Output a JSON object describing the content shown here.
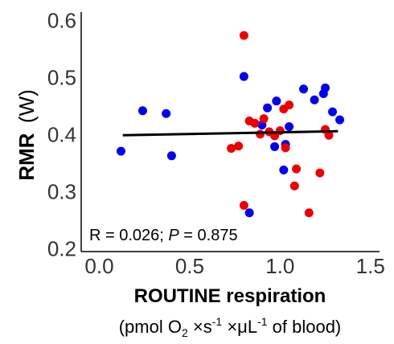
{
  "chart_data": {
    "type": "scatter",
    "ylabel": "RMR",
    "ylabel_unit": "(W)",
    "xlabel": "ROUTINE respiration",
    "xlabel_unit": {
      "open": "(pmol O",
      "o2_sub": "2",
      "times1": " ×s",
      "sup1": "-1",
      "times2": " ×μL",
      "sup2": "-1",
      "tail": " of blood)"
    },
    "xlim": [
      -0.1,
      1.55
    ],
    "ylim": [
      0.195,
      0.615
    ],
    "x_ticks": [
      "0.0",
      "0.5",
      "1.0",
      "1.5"
    ],
    "x_tick_values": [
      0.0,
      0.5,
      1.0,
      1.5
    ],
    "y_ticks": [
      "0.2",
      "0.3",
      "0.4",
      "0.5",
      "0.6"
    ],
    "y_tick_values": [
      0.2,
      0.3,
      0.4,
      0.5,
      0.6
    ],
    "annotation": {
      "prefix": "R = 0.026; ",
      "p_label": "P",
      "suffix": " = 0.875"
    },
    "trend_line": {
      "x": [
        0.13,
        1.32
      ],
      "y": [
        0.399,
        0.406
      ],
      "color": "#000000"
    },
    "series": [
      {
        "color": "#0000ee",
        "points": [
          [
            0.12,
            0.371
          ],
          [
            0.24,
            0.442
          ],
          [
            0.37,
            0.437
          ],
          [
            0.4,
            0.363
          ],
          [
            0.8,
            0.502
          ],
          [
            0.83,
            0.263
          ],
          [
            0.9,
            0.417
          ],
          [
            0.93,
            0.447
          ],
          [
            0.97,
            0.379
          ],
          [
            0.98,
            0.459
          ],
          [
            1.02,
            0.338
          ],
          [
            1.05,
            0.414
          ],
          [
            1.13,
            0.48
          ],
          [
            1.19,
            0.461
          ],
          [
            1.24,
            0.472
          ],
          [
            1.25,
            0.482
          ],
          [
            1.29,
            0.44
          ],
          [
            1.33,
            0.426
          ],
          [
            1.03,
            0.383
          ]
        ]
      },
      {
        "color": "#ee0000",
        "points": [
          [
            0.73,
            0.376
          ],
          [
            0.77,
            0.38
          ],
          [
            0.8,
            0.574
          ],
          [
            0.8,
            0.276
          ],
          [
            0.83,
            0.424
          ],
          [
            0.86,
            0.42
          ],
          [
            0.89,
            0.401
          ],
          [
            0.91,
            0.428
          ],
          [
            0.94,
            0.405
          ],
          [
            0.97,
            0.398
          ],
          [
            1.0,
            0.407
          ],
          [
            1.02,
            0.445
          ],
          [
            1.03,
            0.377
          ],
          [
            1.05,
            0.452
          ],
          [
            1.08,
            0.31
          ],
          [
            1.09,
            0.34
          ],
          [
            1.16,
            0.263
          ],
          [
            1.22,
            0.333
          ],
          [
            1.25,
            0.409
          ],
          [
            1.27,
            0.399
          ]
        ]
      }
    ]
  }
}
